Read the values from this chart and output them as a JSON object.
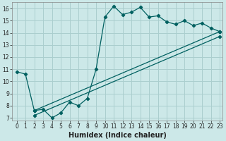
{
  "bg_color": "#cce8e8",
  "grid_color": "#aacece",
  "line_color": "#006060",
  "xlabel": "Humidex (Indice chaleur)",
  "xlim": [
    -0.5,
    23.3
  ],
  "ylim": [
    6.8,
    16.5
  ],
  "yticks": [
    7,
    8,
    9,
    10,
    11,
    12,
    13,
    14,
    15,
    16
  ],
  "xticks": [
    0,
    1,
    2,
    3,
    4,
    5,
    6,
    7,
    8,
    9,
    10,
    11,
    12,
    13,
    14,
    15,
    16,
    17,
    18,
    19,
    20,
    21,
    22,
    23
  ],
  "line1_x": [
    0,
    1,
    2,
    3,
    4,
    5,
    6,
    7,
    8,
    9,
    10,
    11,
    12,
    13,
    14,
    15,
    16,
    17,
    18,
    19,
    20,
    21,
    22,
    23
  ],
  "line1_y": [
    10.8,
    10.6,
    7.6,
    7.7,
    7.0,
    7.4,
    8.3,
    8.0,
    8.6,
    11.0,
    15.3,
    16.2,
    15.5,
    15.7,
    16.1,
    15.3,
    15.4,
    14.9,
    14.7,
    15.0,
    14.6,
    14.8,
    14.4,
    14.1
  ],
  "line2_x": [
    2,
    23
  ],
  "line2_y": [
    7.6,
    14.1
  ],
  "line3_x": [
    2,
    23
  ],
  "line3_y": [
    7.2,
    13.7
  ],
  "tick_fontsize": 5.5,
  "xlabel_fontsize": 7
}
